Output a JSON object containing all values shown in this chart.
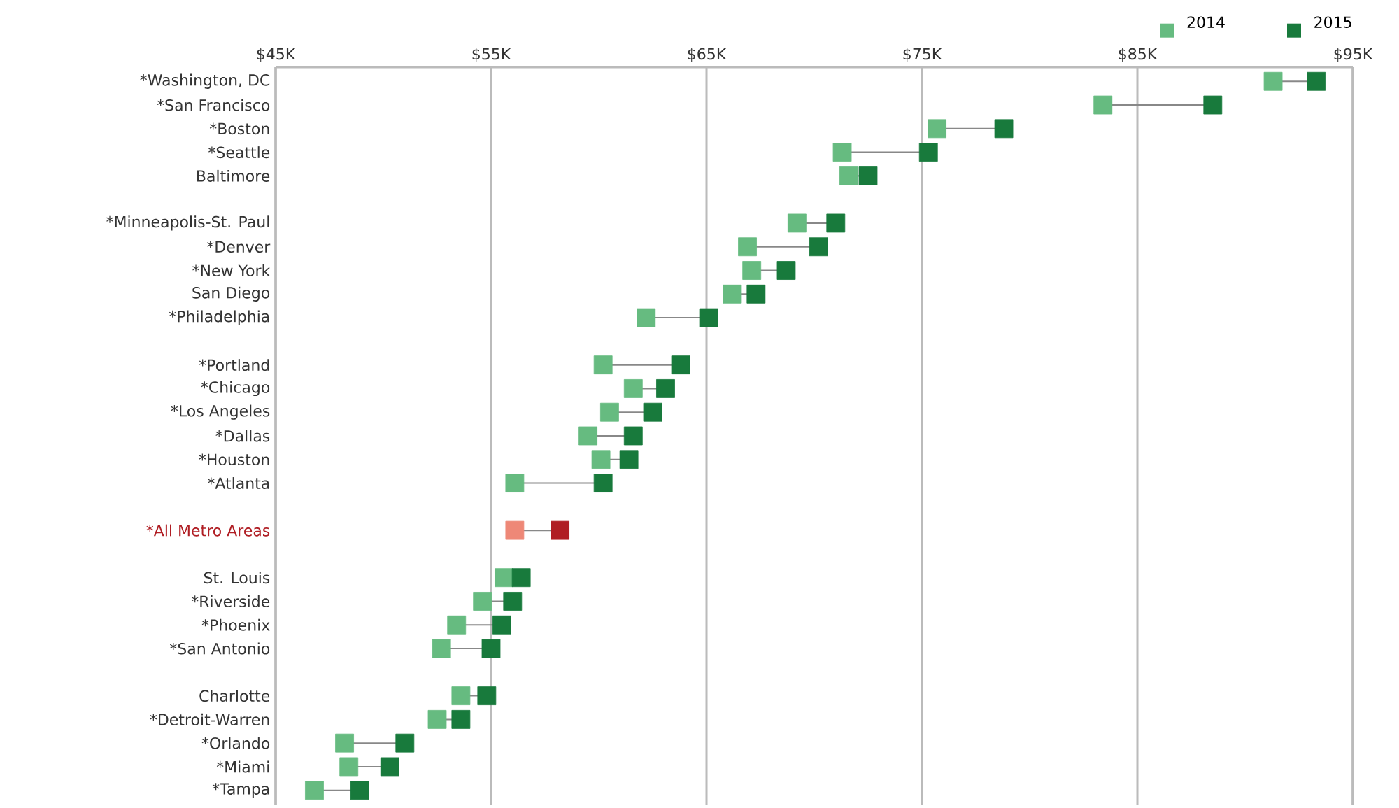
{
  "chart_data": {
    "type": "scatter",
    "orientation": "horizontal",
    "marker": "square",
    "grid": "x",
    "legend": "top right",
    "categories": [
      "*Washington, DC",
      "*San Francisco",
      "*Boston",
      "*Seattle",
      "Baltimore",
      null,
      "*Minneapolis-St. Paul",
      "*Denver",
      "*New York",
      "San Diego",
      "*Philadelphia",
      null,
      "*Portland",
      "*Chicago",
      "*Los Angeles",
      "*Dallas",
      "*Houston",
      "*Atlanta",
      null,
      "*All Metro Areas",
      null,
      "St. Louis",
      "*Riverside",
      "*Phoenix",
      "*San Antonio",
      null,
      "Charlotte",
      "*Detroit-Warren",
      "*Orlando",
      "*Miami",
      "*Tampa"
    ],
    "xlim": [
      45,
      95
    ],
    "xticks": [
      {
        "value": 45,
        "label": "$45K"
      },
      {
        "value": 55,
        "label": "$55K"
      },
      {
        "value": 65,
        "label": "$65K"
      },
      {
        "value": 75,
        "label": "$75K"
      },
      {
        "value": 85,
        "label": "$85K"
      },
      {
        "value": 95,
        "label": "$95K"
      }
    ],
    "series": [
      {
        "name": "2014",
        "color": "#66bb80",
        "colors": [
          "#66bb80",
          "#66bb80",
          "#66bb80",
          "#66bb80",
          "#66bb80",
          null,
          "#66bb80",
          "#66bb80",
          "#66bb80",
          "#66bb80",
          "#66bb80",
          null,
          "#66bb80",
          "#66bb80",
          "#66bb80",
          "#66bb80",
          "#66bb80",
          "#66bb80",
          null,
          "#ee8877",
          null,
          "#66bb80",
          "#66bb80",
          "#66bb80",
          "#66bb80",
          null,
          "#66bb80",
          "#66bb80",
          "#66bb80",
          "#66bb80",
          "#66bb80"
        ],
        "values": [
          91.3,
          83.4,
          75.7,
          71.3,
          71.6,
          null,
          69.2,
          66.9,
          67.1,
          66.2,
          62.2,
          null,
          60.2,
          61.6,
          60.5,
          59.5,
          60.1,
          56.1,
          null,
          56.1,
          null,
          55.6,
          54.6,
          53.4,
          52.7,
          null,
          53.6,
          52.5,
          48.2,
          48.4,
          46.8
        ]
      },
      {
        "name": "2015",
        "color": "#187a3c",
        "colors": [
          "#187a3c",
          "#187a3c",
          "#187a3c",
          "#187a3c",
          "#187a3c",
          null,
          "#187a3c",
          "#187a3c",
          "#187a3c",
          "#187a3c",
          "#187a3c",
          null,
          "#187a3c",
          "#187a3c",
          "#187a3c",
          "#187a3c",
          "#187a3c",
          "#187a3c",
          null,
          "#b01e24",
          null,
          "#187a3c",
          "#187a3c",
          "#187a3c",
          "#187a3c",
          null,
          "#187a3c",
          "#187a3c",
          "#187a3c",
          "#187a3c",
          "#187a3c"
        ],
        "values": [
          93.3,
          88.5,
          78.8,
          75.3,
          72.5,
          null,
          71.0,
          70.2,
          68.7,
          67.3,
          65.1,
          null,
          63.8,
          63.1,
          62.5,
          61.6,
          61.4,
          60.2,
          null,
          58.2,
          null,
          56.4,
          56.0,
          55.5,
          55.0,
          null,
          54.8,
          53.6,
          51.0,
          50.3,
          48.9
        ]
      }
    ]
  }
}
